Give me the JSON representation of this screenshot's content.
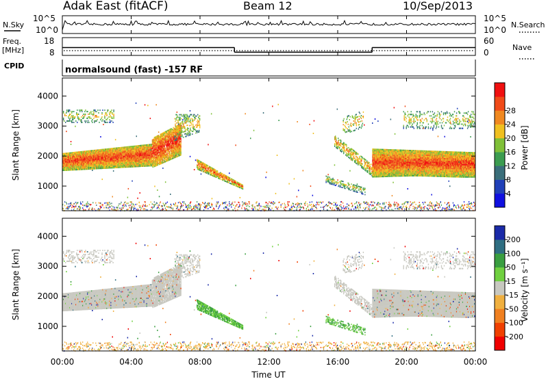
{
  "header": {
    "station": "Adak East (fitACF)",
    "beam": "Beam 12",
    "date": "10/Sep/2013"
  },
  "left_labels": {
    "nsky": "N.Sky",
    "freq_line1": "Freq.",
    "freq_line2": "[MHz]",
    "cpid": "CPID"
  },
  "right_labels": {
    "nsearch": "N.Search",
    "nave": "Nave"
  },
  "cpid_text": "normalsound (fast) -157 RF",
  "colors": {
    "power": [
      "#1010e0",
      "#2040b8",
      "#3a6e7a",
      "#3c9c50",
      "#80c038",
      "#f0c020",
      "#f08820",
      "#f04a18",
      "#f01010"
    ],
    "velocity": [
      "#f00000",
      "#f04000",
      "#f08020",
      "#f0b040",
      "#c8c8c0",
      "#70d040",
      "#3a9e40",
      "#2f6e82",
      "#1a2aa8"
    ]
  },
  "chart_data": [
    {
      "type": "line",
      "name": "noise",
      "left_axis": {
        "label": "N.Sky",
        "ticks": [
          "10^5",
          "10^0"
        ]
      },
      "right_axis": {
        "label": "N.Search",
        "ticks": [
          "10^5",
          "10^0"
        ]
      },
      "x_range": [
        "00:00",
        "24:00"
      ]
    },
    {
      "type": "line",
      "name": "frequency-nave",
      "left_axis": {
        "label": "Freq. [MHz]",
        "ticks": [
          18,
          8
        ]
      },
      "right_axis": {
        "label": "Nave",
        "ticks": [
          60,
          0
        ]
      },
      "freq_segments": [
        {
          "x": [
            0.0,
            10.0
          ],
          "y": 13
        },
        {
          "x": [
            10.0,
            18.0
          ],
          "y": 9
        },
        {
          "x": [
            18.0,
            24.0
          ],
          "y": 13
        }
      ]
    },
    {
      "type": "heatmap",
      "name": "power",
      "ylabel": "Slant Range [km]",
      "yticks": [
        1000,
        2000,
        3000,
        4000
      ],
      "ylim": [
        180,
        4600
      ],
      "colorbar": {
        "label": "Power [dB]",
        "ticks": [
          4,
          8,
          12,
          16,
          20,
          24,
          28
        ]
      }
    },
    {
      "type": "heatmap",
      "name": "velocity",
      "ylabel": "Slant Range [km]",
      "yticks": [
        1000,
        2000,
        3000,
        4000
      ],
      "ylim": [
        180,
        4600
      ],
      "colorbar": {
        "label": "Velocity [m s⁻¹]",
        "ticks": [
          200,
          100,
          50,
          15,
          -15,
          -50,
          -100,
          -200
        ]
      }
    }
  ],
  "xaxis": {
    "label": "Time UT",
    "ticks": [
      "00:00",
      "04:00",
      "08:00",
      "12:00",
      "16:00",
      "20:00",
      "00:00"
    ],
    "range_hours": [
      0,
      24
    ]
  }
}
